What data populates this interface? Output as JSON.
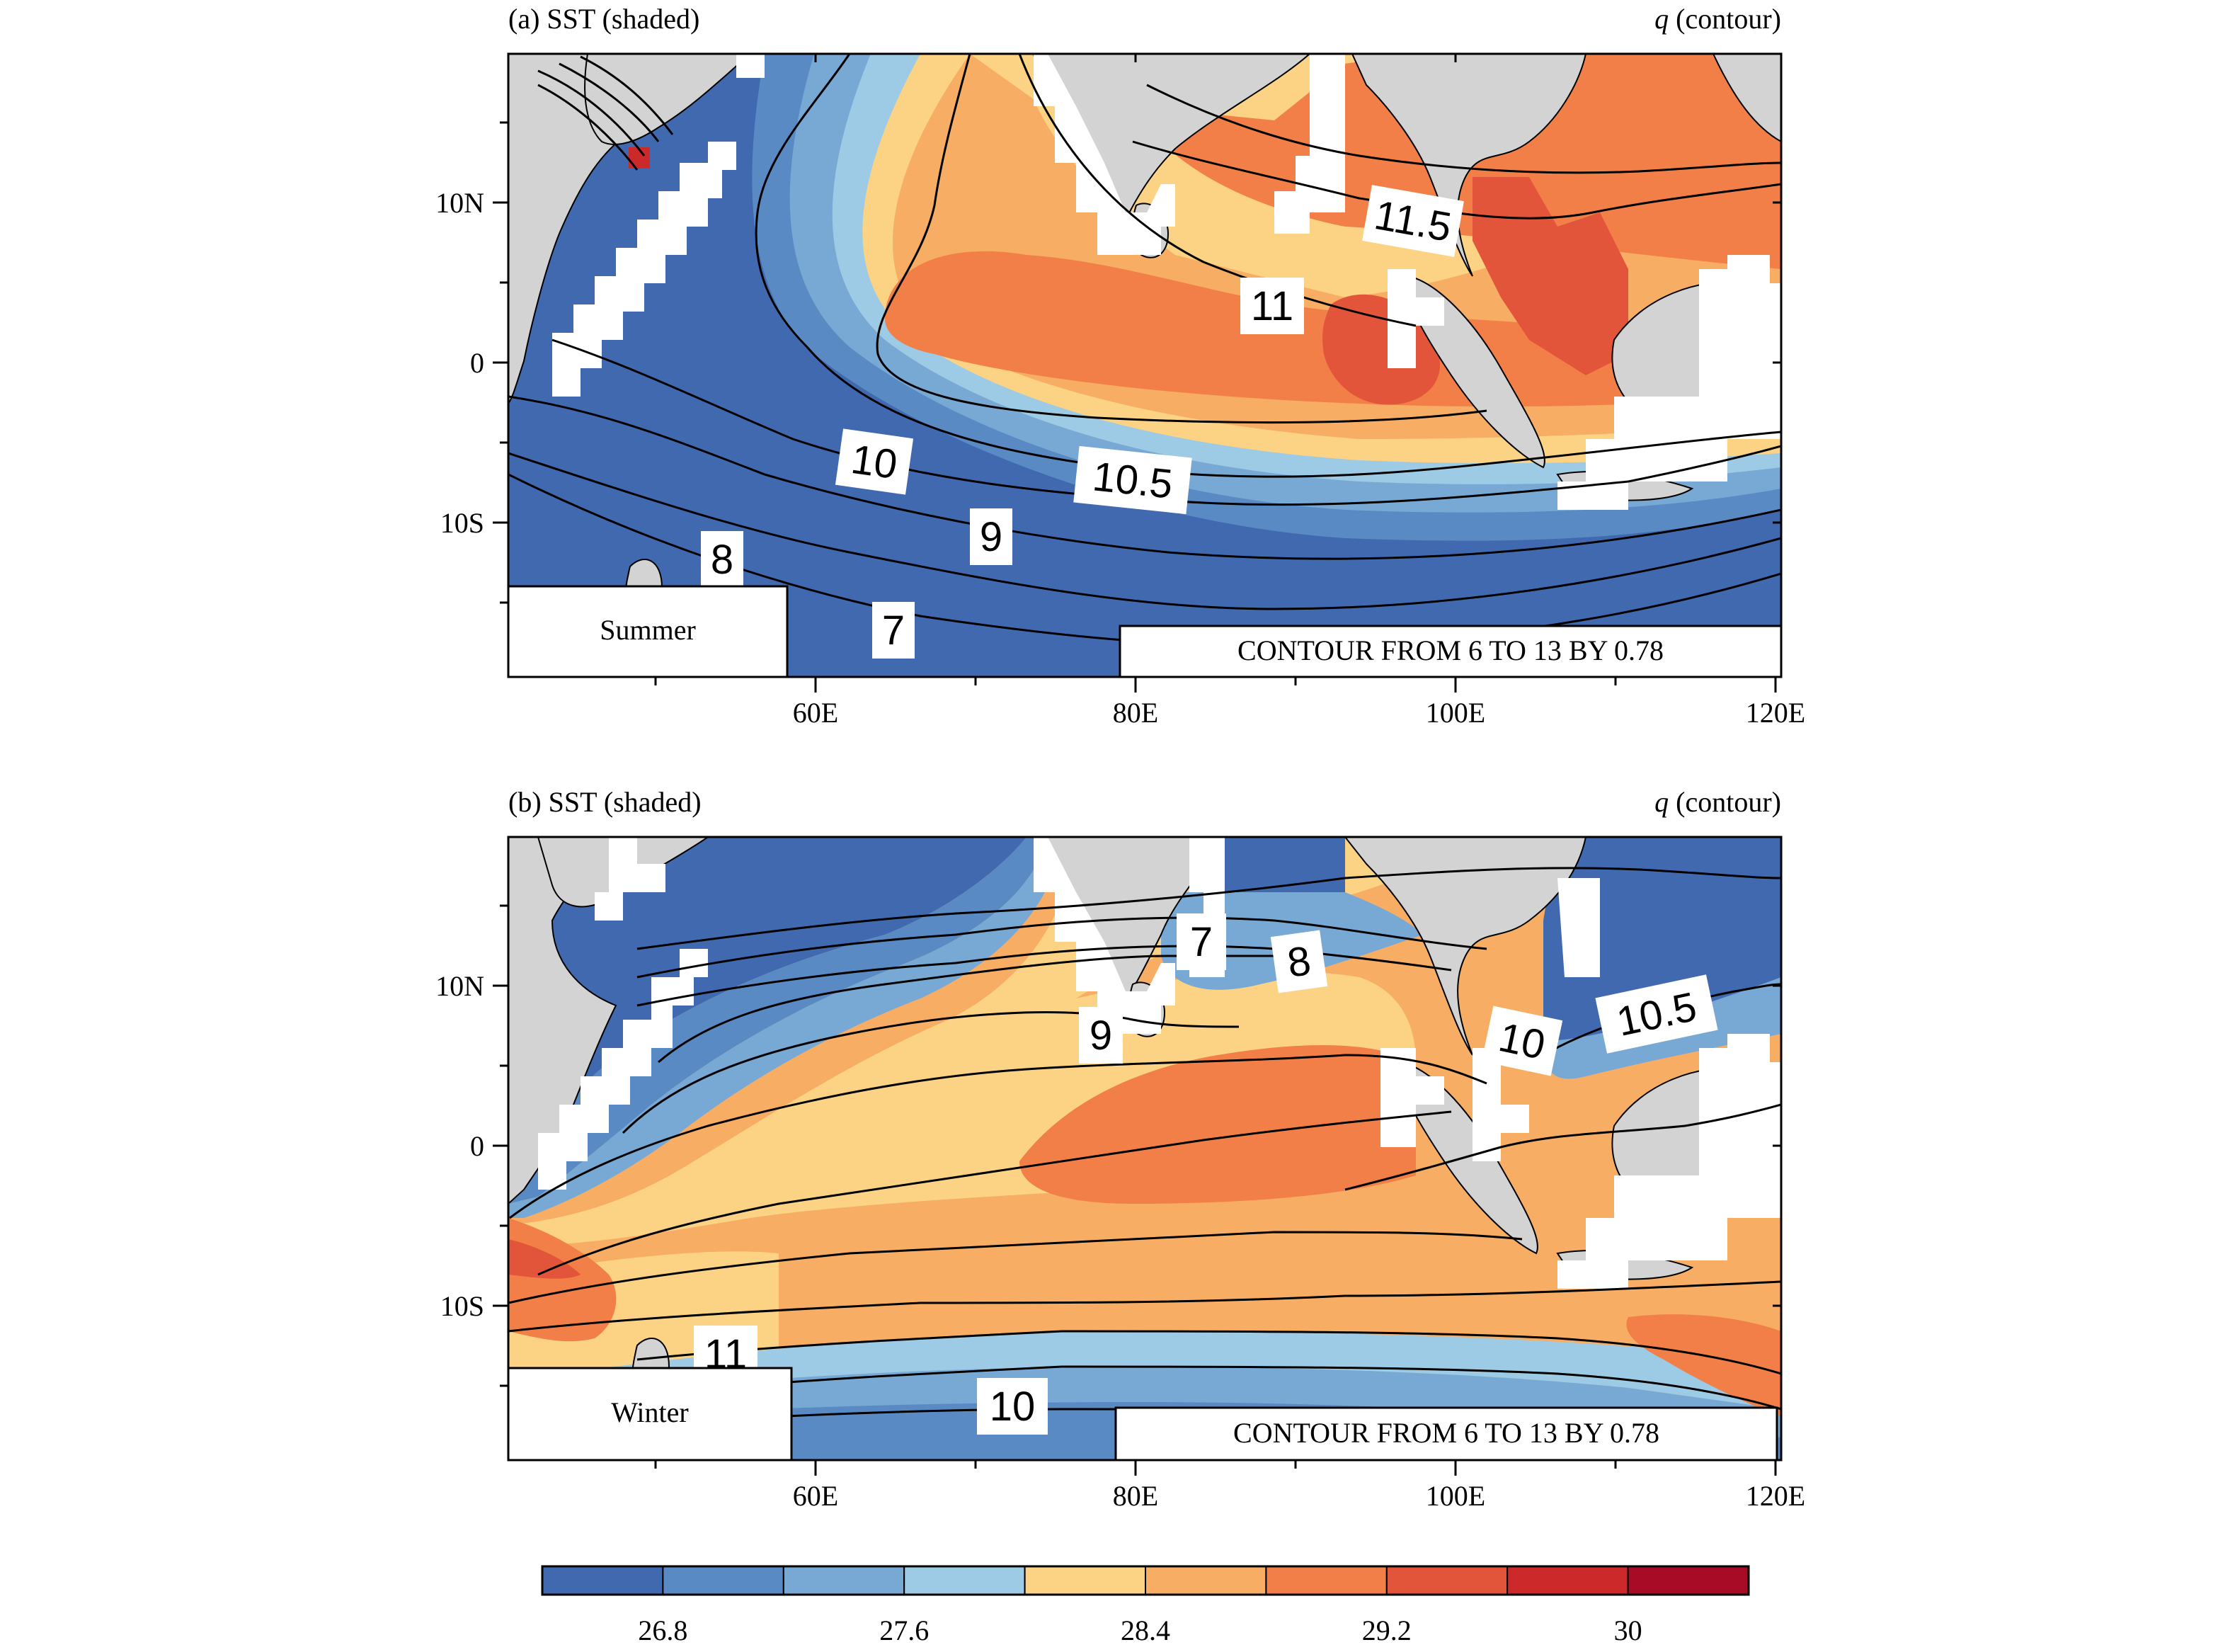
{
  "panels": [
    {
      "title_left": "(a) SST (shaded)",
      "title_right_var": "q",
      "title_right_rest": " (contour)",
      "season": "Summer",
      "contour_info": "CONTOUR FROM 6 TO 13 BY 0.78",
      "contour_labels": [
        "11.5",
        "11",
        "10",
        "10.5",
        "9",
        "8",
        "7"
      ]
    },
    {
      "title_left": "(b) SST (shaded)",
      "title_right_var": "q",
      "title_right_rest": " (contour)",
      "season": "Winter",
      "contour_info": "CONTOUR FROM 6 TO 13 BY 0.78",
      "contour_labels": [
        "7",
        "8",
        "9",
        "10",
        "10.5",
        "11",
        "10"
      ]
    }
  ],
  "axes": {
    "x_ticks": [
      "60E",
      "80E",
      "100E",
      "120E"
    ],
    "y_ticks": [
      "10N",
      "0",
      "10S"
    ]
  },
  "colorbar": {
    "labels": [
      "26.8",
      "27.6",
      "28.4",
      "29.2",
      "30"
    ],
    "colors": [
      "#4169b0",
      "#5a8ac4",
      "#78a8d4",
      "#9dcae4",
      "#fcd385",
      "#f8ad64",
      "#f27f47",
      "#e3553a",
      "#cc2a2a",
      "#a80b25"
    ]
  },
  "colors": {
    "land": "#d3d3d3",
    "deep_blue": "#4169b0",
    "mid_blue": "#5a8ac4",
    "light_blue": "#78a8d4",
    "pale_blue": "#9dcae4",
    "pale_yellow": "#fcd385",
    "light_orange": "#f8ad64",
    "orange": "#f27f47",
    "red_orange": "#e3553a",
    "red": "#cc2a2a"
  }
}
